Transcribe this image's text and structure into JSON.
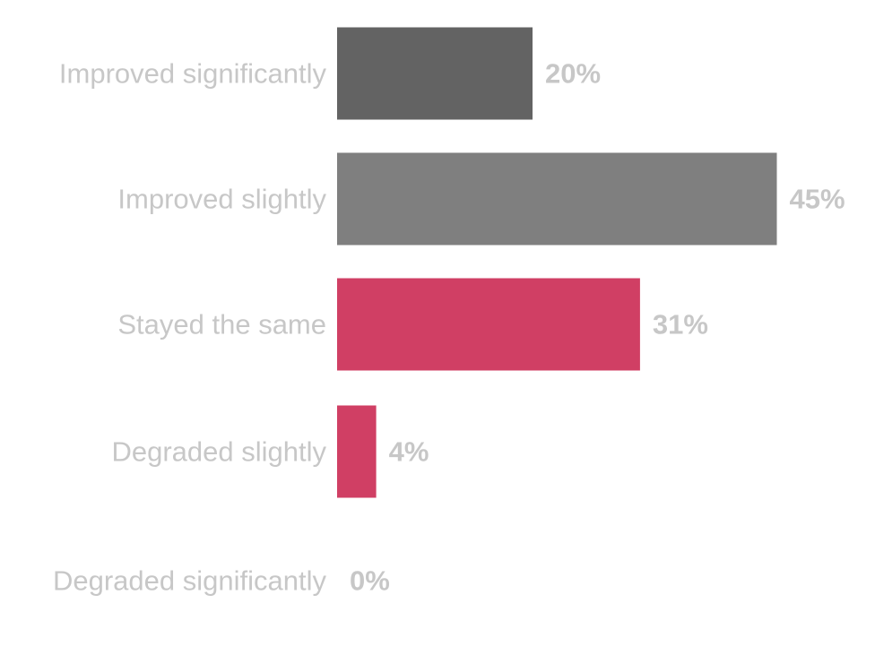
{
  "chart_data": {
    "type": "bar",
    "orientation": "horizontal",
    "categories": [
      "Improved significantly",
      "Improved slightly",
      "Stayed the same",
      "Degraded slightly",
      "Degraded significantly"
    ],
    "values": [
      20,
      45,
      31,
      4,
      0
    ],
    "value_labels": [
      "20%",
      "45%",
      "31%",
      "4%",
      "0%"
    ],
    "unit": "%",
    "xlim": [
      0,
      45
    ],
    "grid": false,
    "legend": "none",
    "colors": [
      "#636363",
      "#7f7f7f",
      "#d03f64",
      "#d03f64",
      "#d03f64"
    ],
    "label_color": "#c7c7c7"
  }
}
